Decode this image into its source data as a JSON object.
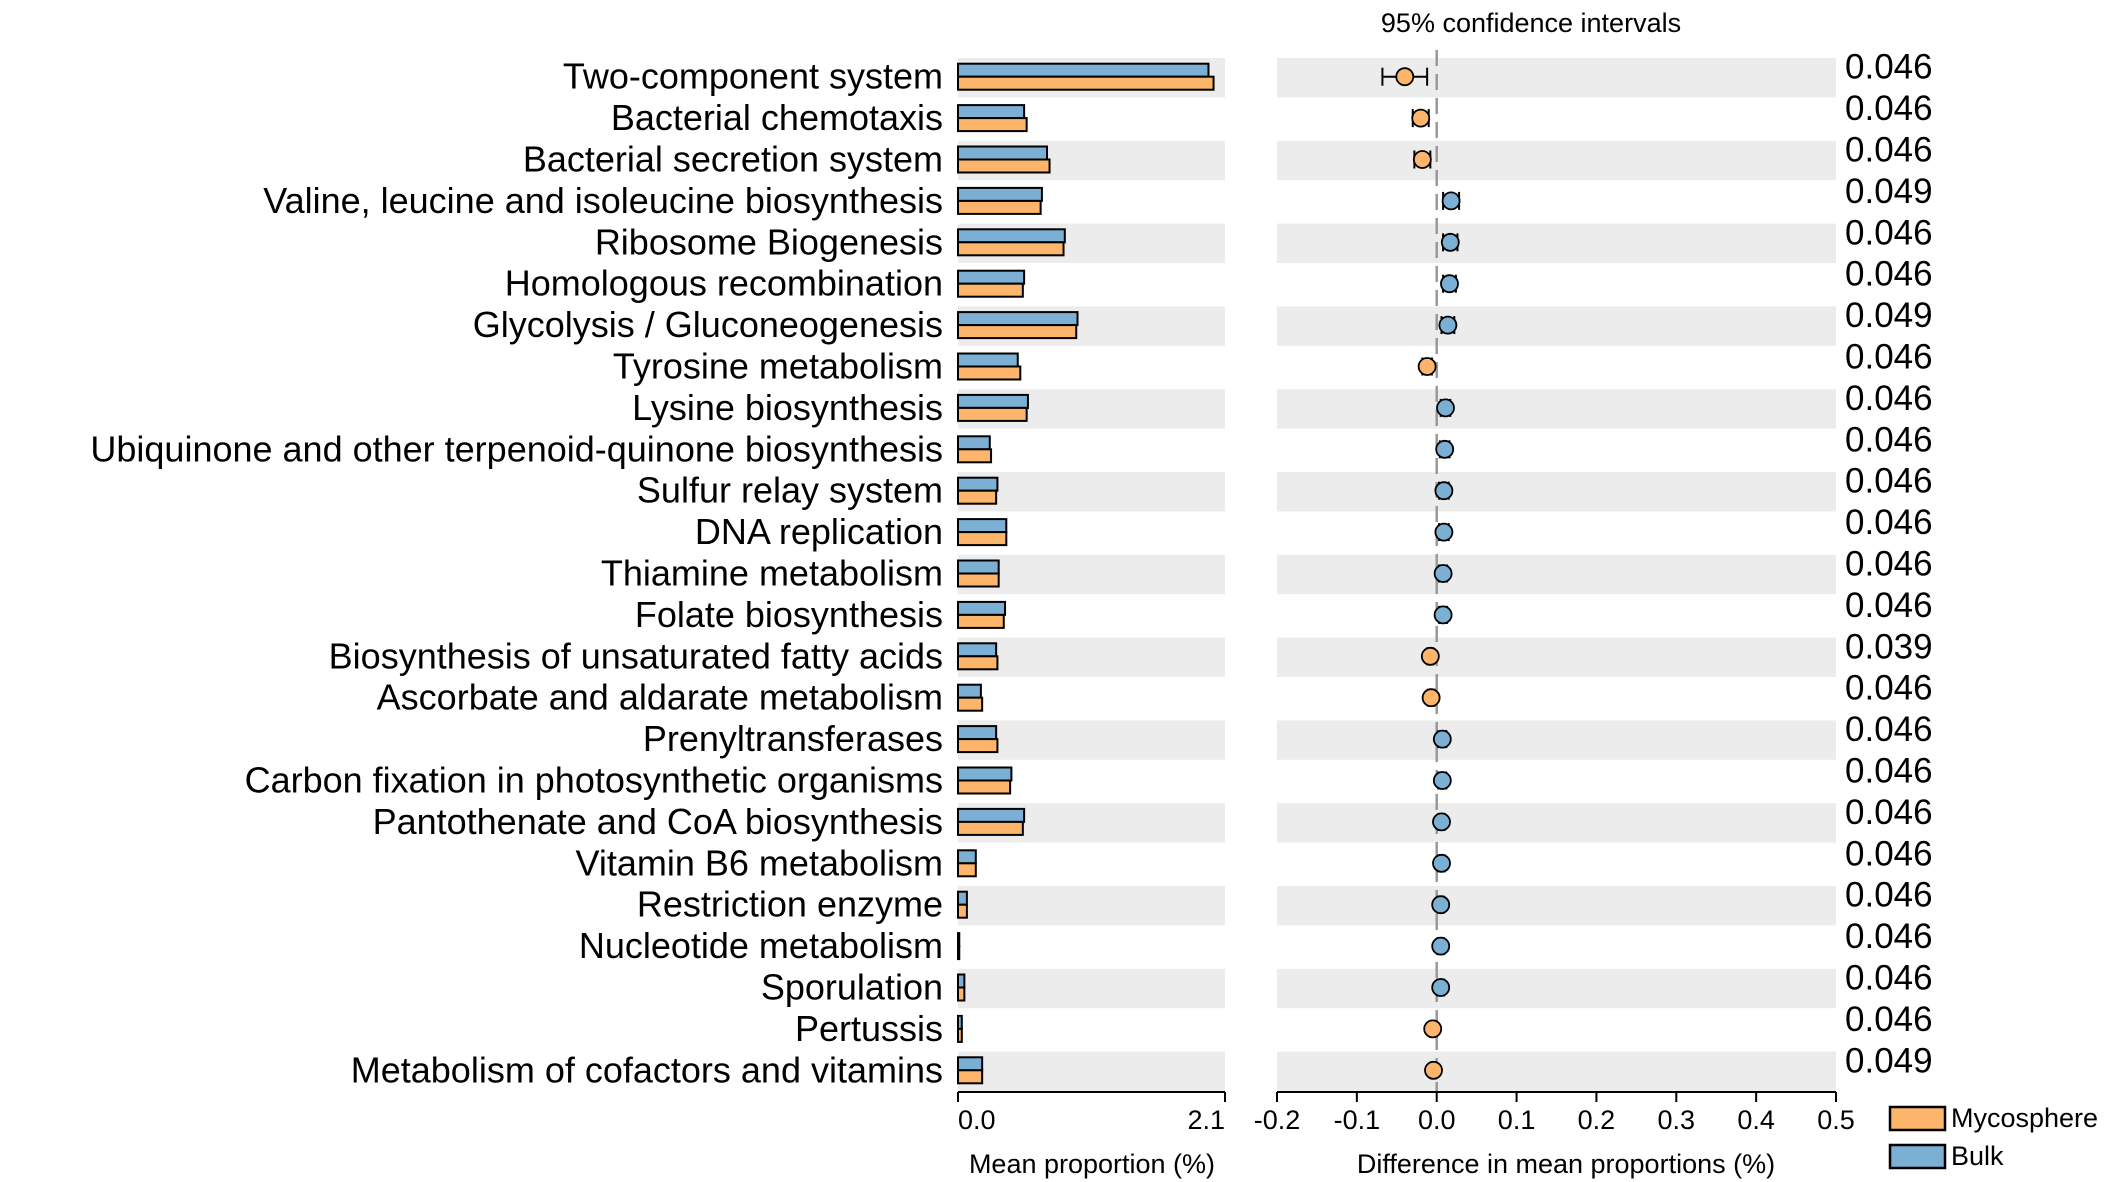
{
  "chart_data": {
    "type": "extended_error_bar",
    "title": "95% confidence intervals",
    "categories": [
      "Two-component system",
      "Bacterial chemotaxis",
      "Bacterial secretion system",
      "Valine, leucine and isoleucine biosynthesis",
      "Ribosome Biogenesis",
      "Homologous recombination",
      "Glycolysis / Gluconeogenesis",
      "Tyrosine metabolism",
      "Lysine biosynthesis",
      "Ubiquinone and other terpenoid-quinone biosynthesis",
      "Sulfur relay system",
      "DNA replication",
      "Thiamine metabolism",
      "Folate biosynthesis",
      "Biosynthesis of unsaturated fatty acids",
      "Ascorbate and aldarate metabolism",
      "Prenyltransferases",
      "Carbon fixation in photosynthetic organisms",
      "Pantothenate and CoA biosynthesis",
      "Vitamin B6 metabolism",
      "Restriction enzyme",
      "Nucleotide metabolism",
      "Sporulation",
      "Pertussis",
      "Metabolism of cofactors and vitamins"
    ],
    "series": [
      {
        "name": "Bulk",
        "color": "#7bafd4",
        "values": [
          1.97,
          0.52,
          0.7,
          0.66,
          0.84,
          0.52,
          0.94,
          0.47,
          0.55,
          0.25,
          0.31,
          0.38,
          0.32,
          0.37,
          0.3,
          0.18,
          0.3,
          0.42,
          0.52,
          0.14,
          0.07,
          0.01,
          0.05,
          0.03,
          0.19
        ]
      },
      {
        "name": "Mycosphere",
        "color": "#fdb56b",
        "values": [
          2.01,
          0.54,
          0.72,
          0.65,
          0.83,
          0.51,
          0.93,
          0.49,
          0.54,
          0.26,
          0.3,
          0.38,
          0.32,
          0.36,
          0.31,
          0.19,
          0.31,
          0.41,
          0.51,
          0.14,
          0.07,
          0.01,
          0.05,
          0.03,
          0.19
        ]
      }
    ],
    "bar_axis": {
      "label": "Mean proportion (%)",
      "range": [
        0.0,
        2.1
      ],
      "ticks": [
        "0.0",
        "2.1"
      ]
    },
    "differences": {
      "label": "Difference in mean proportions (%)",
      "range": [
        -0.2,
        0.5
      ],
      "ticks": [
        "-0.2",
        "-0.1",
        "0.0",
        "0.1",
        "0.2",
        "0.3",
        "0.4",
        "0.5"
      ],
      "estimates": [
        -0.04,
        -0.02,
        -0.018,
        0.018,
        0.017,
        0.016,
        0.014,
        -0.012,
        0.011,
        0.01,
        0.009,
        0.009,
        0.008,
        0.008,
        -0.008,
        -0.007,
        0.007,
        0.007,
        0.006,
        0.006,
        0.005,
        0.005,
        0.005,
        -0.005,
        -0.004
      ],
      "ci_lower": [
        -0.068,
        -0.03,
        -0.028,
        0.008,
        0.008,
        0.008,
        0.006,
        -0.018,
        0.005,
        0.004,
        0.003,
        0.003,
        0.003,
        0.003,
        -0.012,
        -0.011,
        0.002,
        0.002,
        0.002,
        0.002,
        0.001,
        0.001,
        0.001,
        -0.008,
        -0.007
      ],
      "ci_upper": [
        -0.012,
        -0.01,
        -0.008,
        0.028,
        0.026,
        0.024,
        0.022,
        -0.006,
        0.017,
        0.016,
        0.015,
        0.015,
        0.013,
        0.013,
        -0.004,
        -0.003,
        0.012,
        0.012,
        0.01,
        0.01,
        0.009,
        0.009,
        0.009,
        -0.002,
        -0.001
      ],
      "enriched_in": [
        "Mycosphere",
        "Mycosphere",
        "Mycosphere",
        "Bulk",
        "Bulk",
        "Bulk",
        "Bulk",
        "Mycosphere",
        "Bulk",
        "Bulk",
        "Bulk",
        "Bulk",
        "Bulk",
        "Bulk",
        "Mycosphere",
        "Mycosphere",
        "Bulk",
        "Bulk",
        "Bulk",
        "Bulk",
        "Bulk",
        "Bulk",
        "Bulk",
        "Mycosphere",
        "Mycosphere"
      ]
    },
    "p_values": [
      "0.046",
      "0.046",
      "0.046",
      "0.049",
      "0.046",
      "0.046",
      "0.049",
      "0.046",
      "0.046",
      "0.046",
      "0.046",
      "0.046",
      "0.046",
      "0.046",
      "0.039",
      "0.046",
      "0.046",
      "0.046",
      "0.046",
      "0.046",
      "0.046",
      "0.046",
      "0.046",
      "0.046",
      "0.049"
    ],
    "legend": [
      {
        "name": "Mycosphere",
        "color": "#fdb56b"
      },
      {
        "name": "Bulk",
        "color": "#7bafd4"
      }
    ],
    "legend_position": "bottom-right"
  }
}
